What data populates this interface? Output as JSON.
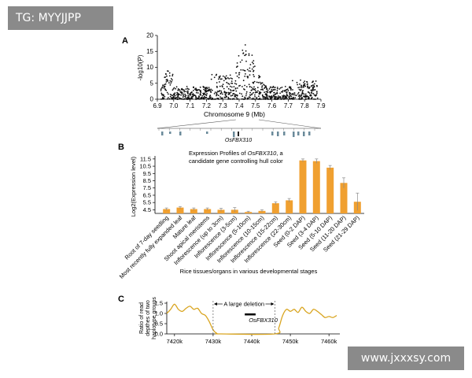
{
  "watermarks": {
    "top": "TG: MYYJJPP",
    "bottom": "www.jxxxsy.com"
  },
  "panel_a": {
    "label": "A",
    "gene_label": "OsFBX310",
    "chart_data": {
      "type": "scatter",
      "xlabel": "Chromosome 9 (Mb)",
      "ylabel": "-log10(P)",
      "xlim": [
        6.9,
        7.9
      ],
      "ylim": [
        0,
        20
      ],
      "x_ticks": [
        6.9,
        7.0,
        7.1,
        7.2,
        7.3,
        7.4,
        7.5,
        7.6,
        7.7,
        7.8,
        7.9
      ],
      "y_ticks": [
        0,
        5,
        10,
        15,
        20
      ],
      "peak_center": 7.44,
      "peak_value": 19,
      "grid": false
    }
  },
  "panel_b": {
    "label": "B",
    "title_line1_prefix": "Expression Profiles of ",
    "title_line1_gene": "OsFBX310",
    "title_line1_suffix": ", a",
    "title_line2": "candidate gene controlling hull color",
    "chart_data": {
      "type": "bar",
      "title": "Expression Profiles of OsFBX310, a candidate gene controlling hull color",
      "xlabel": "Rice tissues/organs in various developmental stages",
      "ylabel": "Log2(Expression level)",
      "ylim": [
        4.0,
        11.7
      ],
      "y_ticks": [
        4.5,
        5.5,
        6.5,
        7.5,
        8.5,
        9.5,
        10.5,
        11.5
      ],
      "color": "#F0A030",
      "categories": [
        "Root of 7-day seedling",
        "Most recently fully expanded leaf",
        "Mature leaf",
        "Shoot apical meristems",
        "Inflorescence (up to 3cm)",
        "Inflorescence (3-5cm)",
        "Inflorescence (5-10cm)",
        "Inflorescence (10-15cm)",
        "Inflorescence (15-22cm)",
        "Inflorescence (22-30cm)",
        "Seed (0-2 DAP)",
        "Seed (3-4 DAP)",
        "Seed (5-10 DAP)",
        "Seed (11-20 DAP)",
        "Seed (21-29 DAP)"
      ],
      "values": [
        4.6,
        4.8,
        4.6,
        4.6,
        4.5,
        4.5,
        4.2,
        4.35,
        5.4,
        5.8,
        11.3,
        11.2,
        10.3,
        8.2,
        5.6
      ],
      "errors": [
        0.15,
        0.15,
        0.15,
        0.15,
        0.2,
        0.3,
        0.1,
        0.15,
        0.2,
        0.25,
        0.2,
        0.3,
        0.3,
        0.7,
        1.2
      ]
    }
  },
  "panel_c": {
    "label": "C",
    "deletion_label": "A large deletion",
    "gene_label": "OsFBX310",
    "chart_data": {
      "type": "line",
      "ylabel": "Ratio of read depthes of two haplotype groups",
      "ylabel_lines": [
        "Ratio of read",
        "depthes of two",
        "haplotype groups"
      ],
      "xlim": [
        7418,
        7462
      ],
      "ylim": [
        0,
        1.5
      ],
      "y_ticks": [
        0,
        0.5,
        1.0,
        1.5
      ],
      "x_ticks": [
        7420,
        7430,
        7440,
        7450,
        7460
      ],
      "x_tick_labels": [
        "7420k",
        "7430k",
        "7440k",
        "7450k",
        "7460k"
      ],
      "color": "#D9A520",
      "deletion_range": [
        7430,
        7446
      ],
      "x": [
        7418,
        7419,
        7420,
        7421,
        7422,
        7423,
        7424,
        7425,
        7426,
        7427,
        7428,
        7429,
        7430,
        7431,
        7432,
        7446,
        7447,
        7448,
        7449,
        7450,
        7451,
        7452,
        7453,
        7454,
        7455,
        7456,
        7457,
        7458,
        7459,
        7460,
        7461,
        7462
      ],
      "y": [
        1.0,
        1.2,
        1.45,
        1.2,
        1.1,
        1.25,
        1.35,
        1.2,
        1.25,
        1.0,
        0.9,
        0.6,
        0.2,
        0.02,
        0.0,
        0.0,
        0.3,
        0.9,
        1.2,
        1.1,
        1.2,
        1.05,
        1.3,
        1.1,
        1.0,
        1.2,
        1.1,
        0.95,
        0.8,
        0.85,
        0.8,
        0.9
      ]
    }
  }
}
